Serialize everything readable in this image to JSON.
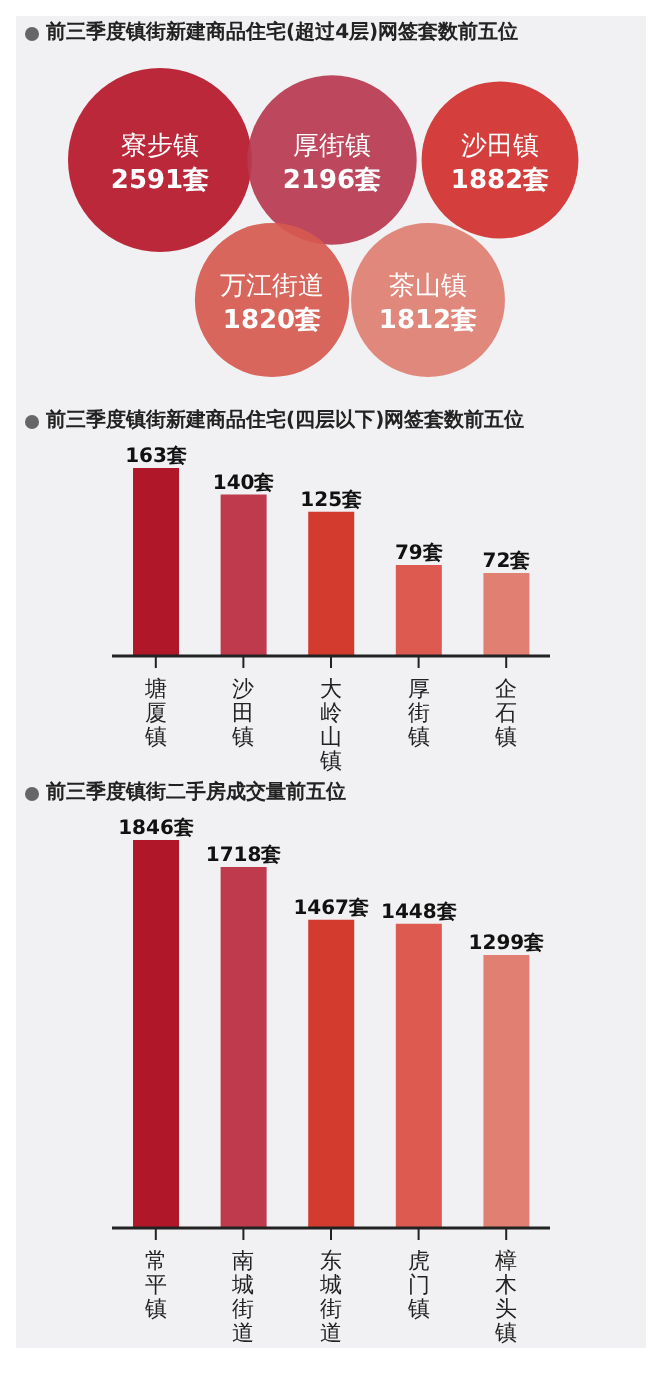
{
  "chart_data": [
    {
      "type": "other",
      "title": "前三季度镇街新建商品住宅(超过4层)网签套数前五位",
      "categories": [
        "寮步镇",
        "厚街镇",
        "沙田镇",
        "万江街道",
        "茶山镇"
      ],
      "values": [
        2591,
        2196,
        1882,
        1820,
        1812
      ],
      "value_labels": [
        "2591套",
        "2196套",
        "1882套",
        "1820套",
        "1812套"
      ],
      "colors": [
        "#b5172a",
        "#b83a50",
        "#d1302f",
        "#d65a4f",
        "#e07f72"
      ]
    },
    {
      "type": "bar",
      "title": "前三季度镇街新建商品住宅(四层以下)网签套数前五位",
      "categories": [
        "塘厦镇",
        "沙田镇",
        "大岭山镇",
        "厚街镇",
        "企石镇"
      ],
      "values": [
        163,
        140,
        125,
        79,
        72
      ],
      "value_labels": [
        "163套",
        "140套",
        "125套",
        "79套",
        "72套"
      ],
      "colors": [
        "#b0182a",
        "#bf3a4c",
        "#d23b2e",
        "#dc5a50",
        "#e07f72"
      ]
    },
    {
      "type": "bar",
      "title": "前三季度镇街二手房成交量前五位",
      "categories": [
        "常平镇",
        "南城街道",
        "东城街道",
        "虎门镇",
        "樟木头镇"
      ],
      "values": [
        1846,
        1718,
        1467,
        1448,
        1299
      ],
      "value_labels": [
        "1846套",
        "1718套",
        "1467套",
        "1448套",
        "1299套"
      ],
      "colors": [
        "#b0182a",
        "#bf3a4c",
        "#d23b2e",
        "#dc5a50",
        "#e07f72"
      ]
    }
  ]
}
